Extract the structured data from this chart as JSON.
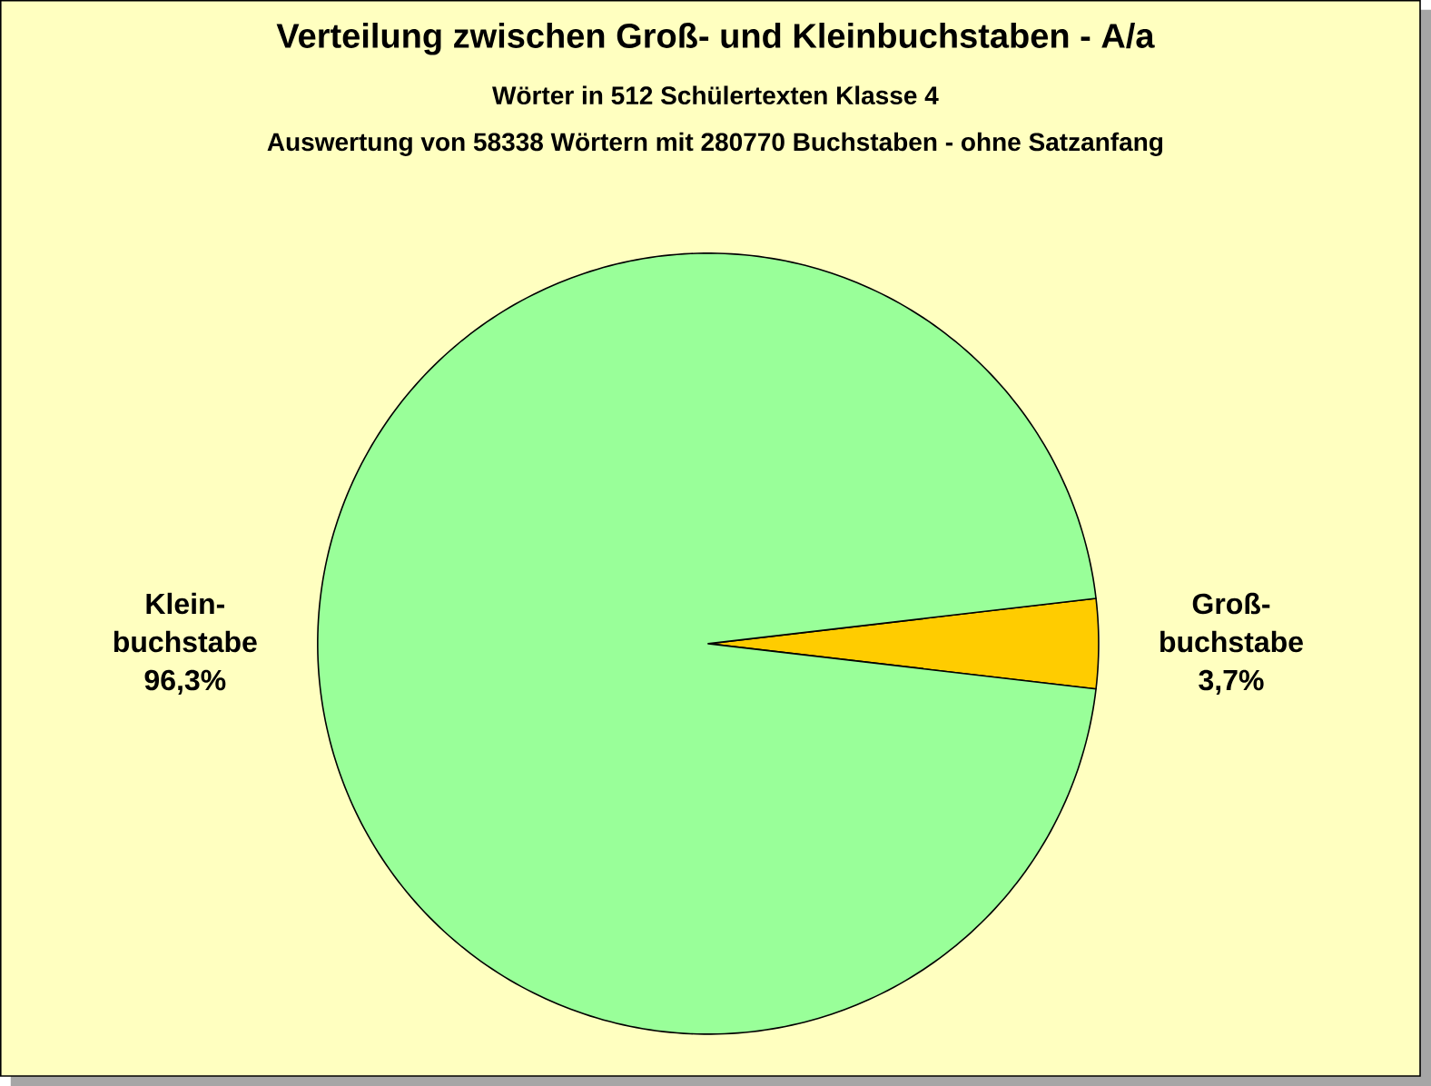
{
  "chart_data": {
    "type": "pie",
    "title": "Verteilung zwischen Groß- und  Kleinbuchstaben - A/a",
    "subtitle": "Wörter in 512 Schülertexten Klasse 4",
    "annotations": [
      "Auswertung von 58338 Wörtern mit 280770 Buchstaben - ohne Satzanfang"
    ],
    "categories": [
      "Groß-buchstabe",
      "Klein-buchstabe"
    ],
    "values": [
      3.7,
      96.3
    ],
    "value_labels": [
      "3,7%",
      "96,3%"
    ],
    "colors": [
      "#ffcc00",
      "#99ff99"
    ]
  }
}
